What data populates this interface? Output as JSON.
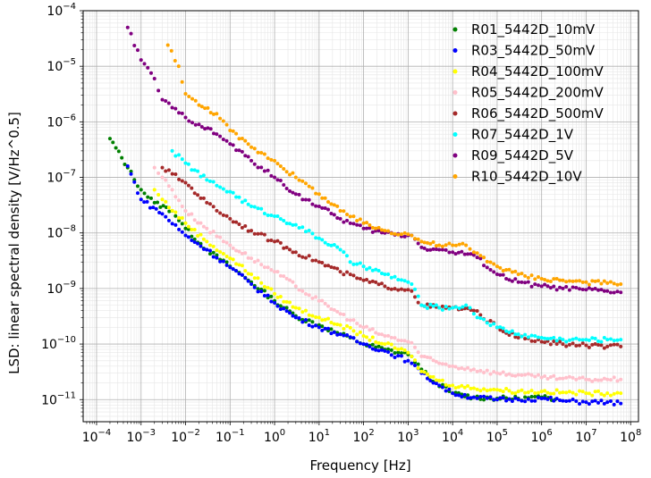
{
  "chart_data": {
    "type": "scatter",
    "title": "",
    "xlabel": "Frequency [Hz]",
    "ylabel": "LSD: linear spectral density [V/Hz^0.5]",
    "x_scale": "log",
    "y_scale": "log",
    "xlim": [
      5e-05,
      150000000
    ],
    "ylim": [
      4e-12,
      0.0001
    ],
    "x_ticks": [
      {
        "value": 0.0001,
        "mant": "10",
        "exp": "−4"
      },
      {
        "value": 0.001,
        "mant": "10",
        "exp": "−3"
      },
      {
        "value": 0.01,
        "mant": "10",
        "exp": "−2"
      },
      {
        "value": 0.1,
        "mant": "10",
        "exp": "−1"
      },
      {
        "value": 1,
        "mant": "10",
        "exp": "0"
      },
      {
        "value": 10,
        "mant": "10",
        "exp": "1"
      },
      {
        "value": 100,
        "mant": "10",
        "exp": "2"
      },
      {
        "value": 1000,
        "mant": "10",
        "exp": "3"
      },
      {
        "value": 10000,
        "mant": "10",
        "exp": "4"
      },
      {
        "value": 100000,
        "mant": "10",
        "exp": "5"
      },
      {
        "value": 1000000,
        "mant": "10",
        "exp": "6"
      },
      {
        "value": 10000000,
        "mant": "10",
        "exp": "7"
      },
      {
        "value": 100000000,
        "mant": "10",
        "exp": "8"
      }
    ],
    "y_ticks": [
      {
        "value": 1e-11,
        "mant": "10",
        "exp": "−11"
      },
      {
        "value": 1e-10,
        "mant": "10",
        "exp": "−10"
      },
      {
        "value": 1e-09,
        "mant": "10",
        "exp": "−9"
      },
      {
        "value": 1e-08,
        "mant": "10",
        "exp": "−8"
      },
      {
        "value": 1e-07,
        "mant": "10",
        "exp": "−7"
      },
      {
        "value": 1e-06,
        "mant": "10",
        "exp": "−6"
      },
      {
        "value": 1e-05,
        "mant": "10",
        "exp": "−5"
      },
      {
        "value": 0.0001,
        "mant": "10",
        "exp": "−4"
      }
    ],
    "grid": true,
    "legend_position": "top-right",
    "series": [
      {
        "name": "R01_5442D_10mV",
        "color": "#008000",
        "x": [
          0.0002,
          0.0005,
          0.001,
          0.002,
          0.005,
          0.01,
          0.03,
          0.1,
          0.3,
          1,
          3,
          10,
          30,
          50,
          100,
          300,
          1000,
          1200,
          2000,
          3000,
          10000,
          30000,
          100000,
          300000,
          1000000,
          2000000
        ],
        "y": [
          5e-07,
          1.5e-07,
          6e-08,
          3.5e-08,
          2.5e-08,
          1.2e-08,
          5e-09,
          2.5e-09,
          1.3e-09,
          6e-10,
          3.2e-10,
          2.2e-10,
          1.5e-10,
          1.3e-10,
          1e-10,
          8e-11,
          6.5e-11,
          6e-11,
          3.5e-11,
          2.5e-11,
          1.3e-11,
          1.1e-11,
          1.05e-11,
          1.05e-11,
          1.1e-11,
          1e-11
        ]
      },
      {
        "name": "R03_5442D_50mV",
        "color": "#0000ff",
        "x": [
          0.0005,
          0.001,
          0.003,
          0.01,
          0.03,
          0.1,
          0.3,
          1,
          3,
          10,
          30,
          100,
          300,
          1000,
          1200,
          2000,
          5000,
          10000,
          30000,
          100000,
          300000,
          1000000,
          3000000,
          10000000,
          30000000,
          60000000
        ],
        "y": [
          1.6e-07,
          4e-08,
          2.2e-08,
          9e-09,
          5e-09,
          2.4e-09,
          1.2e-09,
          5.5e-10,
          3e-10,
          2e-10,
          1.5e-10,
          1e-10,
          7.5e-11,
          5e-11,
          4.5e-11,
          3e-11,
          1.8e-11,
          1.3e-11,
          1.1e-11,
          1e-11,
          1e-11,
          1.05e-11,
          9.5e-12,
          9e-12,
          9e-12,
          8.5e-12
        ]
      },
      {
        "name": "R04_5442D_100mV",
        "color": "#ffff00",
        "x": [
          0.002,
          0.003,
          0.01,
          0.03,
          0.1,
          0.3,
          1,
          3,
          10,
          30,
          100,
          300,
          1000,
          1200,
          2000,
          5000,
          10000,
          30000,
          100000,
          300000,
          1000000,
          3000000,
          10000000,
          30000000,
          60000000
        ],
        "y": [
          6e-08,
          4e-08,
          1.5e-08,
          7e-09,
          3.5e-09,
          1.8e-09,
          8e-10,
          4.5e-10,
          3e-10,
          2.2e-10,
          1.4e-10,
          1e-10,
          7e-11,
          6e-11,
          3.2e-11,
          2.2e-11,
          1.8e-11,
          1.6e-11,
          1.5e-11,
          1.4e-11,
          1.4e-11,
          1.35e-11,
          1.3e-11,
          1.3e-11,
          1.3e-11
        ]
      },
      {
        "name": "R05_5442D_200mV",
        "color": "#ffc0cb",
        "x": [
          0.002,
          0.003,
          0.005,
          0.01,
          0.03,
          0.1,
          0.3,
          1,
          3,
          10,
          30,
          100,
          300,
          1000,
          1200,
          2000,
          5000,
          10000,
          30000,
          100000,
          300000,
          1000000,
          3000000,
          10000000,
          30000000,
          60000000
        ],
        "y": [
          1.5e-07,
          1e-07,
          6e-08,
          2.5e-08,
          1.2e-08,
          6e-09,
          3.5e-09,
          2e-09,
          1.1e-09,
          6e-10,
          3.5e-10,
          2e-10,
          1.4e-10,
          1.1e-10,
          1.05e-10,
          6e-11,
          4.5e-11,
          4e-11,
          3.5e-11,
          3e-11,
          2.8e-11,
          2.5e-11,
          2.4e-11,
          2.3e-11,
          2.3e-11,
          2.3e-11
        ]
      },
      {
        "name": "R06_5442D_500mV",
        "color": "#a52a2a",
        "x": [
          0.003,
          0.01,
          0.03,
          0.1,
          0.3,
          1,
          3,
          10,
          30,
          100,
          300,
          1000,
          1200,
          2000,
          5000,
          10000,
          30000,
          100000,
          300000,
          1000000,
          3000000,
          10000000,
          30000000,
          60000000
        ],
        "y": [
          1.5e-07,
          8e-08,
          3.5e-08,
          1.8e-08,
          1.1e-08,
          7e-09,
          4.5e-09,
          3e-09,
          2e-09,
          1.4e-09,
          1.1e-09,
          9.5e-10,
          9e-10,
          5e-10,
          4.5e-10,
          4.5e-10,
          4e-10,
          2e-10,
          1.3e-10,
          1.1e-10,
          1e-10,
          9.5e-11,
          9e-11,
          9e-11
        ]
      },
      {
        "name": "R07_5442D_1V",
        "color": "#00ffff",
        "x": [
          0.005,
          0.01,
          0.03,
          0.1,
          0.3,
          1,
          3,
          10,
          30,
          50,
          100,
          300,
          1000,
          1200,
          2000,
          5000,
          10000,
          20000,
          30000,
          100000,
          300000,
          1000000,
          3000000,
          10000000,
          30000000,
          60000000
        ],
        "y": [
          3e-07,
          1.8e-07,
          9e-08,
          5.5e-08,
          3e-08,
          2e-08,
          1.4e-08,
          8e-09,
          5e-09,
          3e-09,
          2.5e-09,
          1.8e-09,
          1.3e-09,
          1.2e-09,
          5e-10,
          4.5e-10,
          4.5e-10,
          5e-10,
          3.5e-10,
          2e-10,
          1.5e-10,
          1.3e-10,
          1.2e-10,
          1.2e-10,
          1.2e-10,
          1.2e-10
        ]
      },
      {
        "name": "R09_5442D_5V",
        "color": "#800080",
        "x": [
          0.0005,
          0.001,
          0.002,
          0.003,
          0.005,
          0.01,
          0.02,
          0.05,
          0.1,
          0.3,
          1,
          3,
          10,
          30,
          100,
          300,
          1000,
          1200,
          2000,
          5000,
          10000,
          30000,
          100000,
          300000,
          1000000,
          3000000,
          10000000,
          30000000,
          60000000
        ],
        "y": [
          5e-05,
          1.3e-05,
          6e-06,
          2.5e-06,
          1.8e-06,
          1.2e-06,
          9e-07,
          6e-07,
          4e-07,
          2e-07,
          1e-07,
          5e-08,
          3e-08,
          1.8e-08,
          1.2e-08,
          1e-08,
          9e-09,
          9e-09,
          5.5e-09,
          5e-09,
          4.5e-09,
          4e-09,
          1.8e-09,
          1.3e-09,
          1.1e-09,
          1e-09,
          9.5e-10,
          9e-10,
          8.5e-10
        ]
      },
      {
        "name": "R10_5442D_10V",
        "color": "#ffa500",
        "x": [
          0.004,
          0.007,
          0.01,
          0.02,
          0.05,
          0.1,
          0.3,
          1,
          3,
          10,
          30,
          100,
          300,
          1000,
          1200,
          2000,
          5000,
          10000,
          20000,
          30000,
          100000,
          300000,
          1000000,
          3000000,
          10000000,
          30000000,
          60000000
        ],
        "y": [
          2.4e-05,
          1e-05,
          3.2e-06,
          2e-06,
          1.4e-06,
          7e-07,
          3.5e-07,
          2e-07,
          1e-07,
          5e-08,
          2.5e-08,
          1.5e-08,
          1.1e-08,
          9.5e-09,
          9e-09,
          7e-09,
          6e-09,
          6e-09,
          6e-09,
          4.5e-09,
          2.5e-09,
          1.8e-09,
          1.5e-09,
          1.4e-09,
          1.3e-09,
          1.25e-09,
          1.2e-09
        ]
      }
    ]
  }
}
